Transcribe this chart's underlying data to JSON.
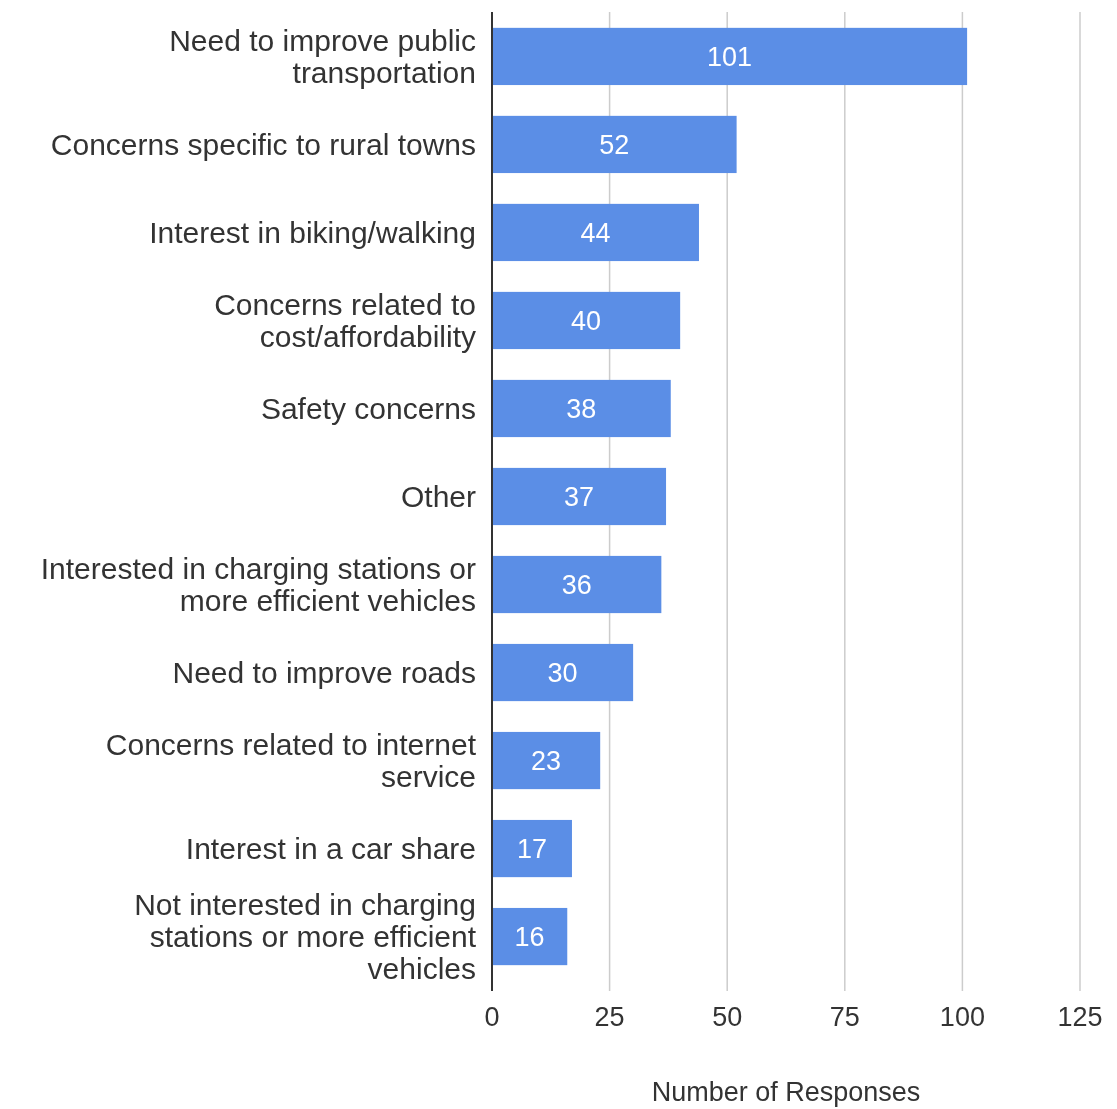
{
  "chart_data": {
    "type": "bar",
    "orientation": "horizontal",
    "xlabel": "Number of Responses",
    "categories": [
      "Need to improve public transportation",
      "Concerns specific to rural towns",
      "Interest in biking/walking",
      "Concerns related to cost/affordability",
      "Safety concerns",
      "Other",
      "Interested in charging stations or more efficient vehicles",
      "Need to improve roads",
      "Concerns related to internet service",
      "Interest in a car share",
      "Not interested in charging stations or more efficient vehicles"
    ],
    "values": [
      101,
      52,
      44,
      40,
      38,
      37,
      36,
      30,
      23,
      17,
      16
    ],
    "color": "#5b8ee6",
    "xlim": [
      0,
      125
    ],
    "xticks": [
      0,
      25,
      50,
      75,
      100,
      125
    ],
    "grid": "x",
    "data_labels": true
  }
}
